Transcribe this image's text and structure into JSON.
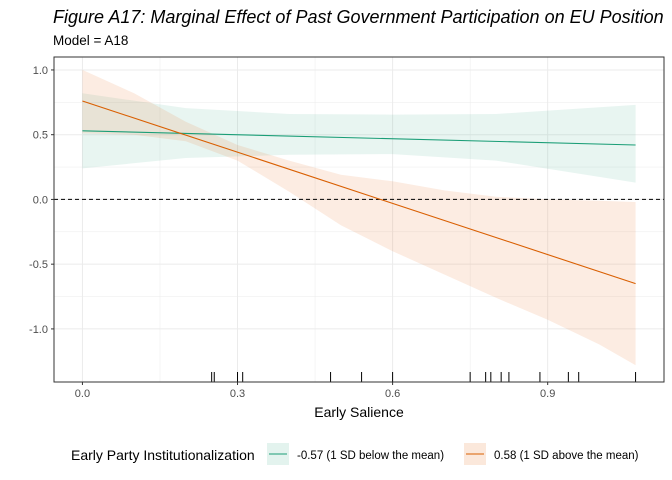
{
  "title": "Figure A17: Marginal Effect of Past Government Participation on EU Position",
  "subtitle": "Model = A18",
  "colors": {
    "series_low": "#1b9e77",
    "series_high": "#d95f02",
    "band_low": "#1b9e77",
    "band_high": "#e97e3a",
    "gridline": "#ebebeb",
    "panel_border": "#333333",
    "reference_line": "#000000"
  },
  "chart_data": {
    "type": "line",
    "title": "Figure A17: Marginal Effect of Past Government Participation on EU Position",
    "subtitle": "Model = A18",
    "xlabel": "Early Salience",
    "ylabel": "",
    "xlim": [
      -0.055,
      1.125
    ],
    "ylim": [
      -1.41,
      1.1
    ],
    "x_ticks": [
      0.0,
      0.3,
      0.6,
      0.9
    ],
    "x_tick_labels": [
      "0.0",
      "0.3",
      "0.6",
      "0.9"
    ],
    "y_ticks": [
      1.0,
      0.5,
      0.0,
      -0.5,
      -1.0
    ],
    "y_tick_labels": [
      "1.0",
      "0.5",
      "0.0",
      "-0.5",
      "-1.0"
    ],
    "grid": true,
    "reference_line_y": 0.0,
    "legend": {
      "title": "Early Party Institutionalization",
      "placement": "bottom"
    },
    "series": [
      {
        "name": "-0.57 (1 SD below the mean)",
        "x": [
          0.0,
          1.07
        ],
        "y": [
          0.53,
          0.42
        ],
        "band_x": [
          0.0,
          0.2,
          0.4,
          0.6,
          0.8,
          1.07
        ],
        "band_lower": [
          0.24,
          0.32,
          0.345,
          0.35,
          0.3,
          0.13
        ],
        "band_upper": [
          0.82,
          0.705,
          0.66,
          0.655,
          0.66,
          0.73
        ]
      },
      {
        "name": "0.58 (1 SD above the mean)",
        "x": [
          0.0,
          1.07
        ],
        "y": [
          0.76,
          -0.65
        ],
        "band_x": [
          0.0,
          0.1,
          0.2,
          0.3,
          0.4,
          0.5,
          0.6,
          0.7,
          0.8,
          0.9,
          1.0,
          1.07
        ],
        "band_lower": [
          0.51,
          0.5,
          0.45,
          0.3,
          0.06,
          -0.2,
          -0.4,
          -0.58,
          -0.76,
          -0.93,
          -1.12,
          -1.28
        ],
        "band_upper": [
          1.0,
          0.82,
          0.6,
          0.42,
          0.3,
          0.19,
          0.14,
          0.07,
          0.02,
          0.0,
          -0.01,
          -0.02
        ]
      }
    ],
    "rug_x": [
      0.25,
      0.255,
      0.3,
      0.31,
      0.48,
      0.54,
      0.6,
      0.75,
      0.78,
      0.79,
      0.81,
      0.825,
      0.885,
      0.94,
      0.96,
      1.07
    ]
  }
}
